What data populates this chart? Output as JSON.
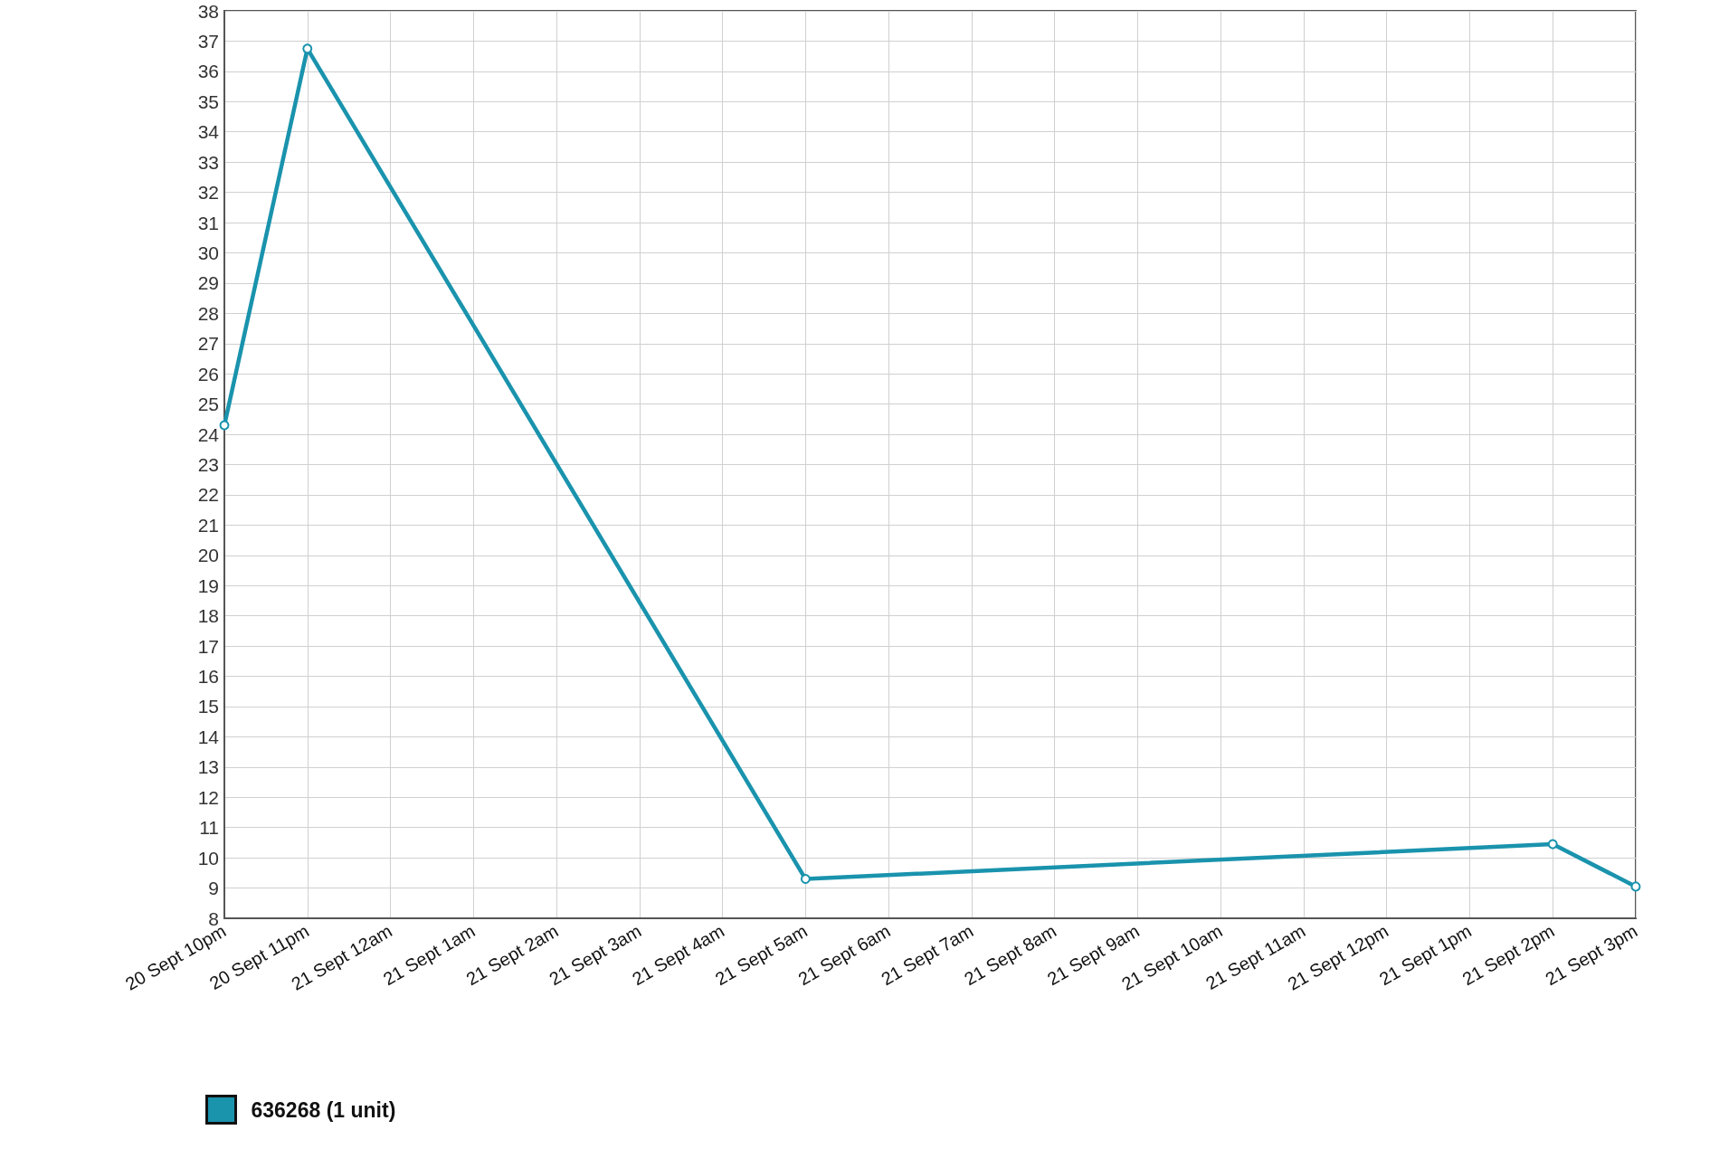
{
  "chart_data": {
    "type": "line",
    "x": [
      "--09-20T22:00",
      "--09-20T23:00",
      "--09-21T05:00",
      "--09-21T14:00",
      "--09-21T15:00"
    ],
    "xlim": [
      "--09-20T22:00",
      "--09-21T15:00"
    ],
    "xticks": [
      {
        "value": "--09-20T22:00",
        "label": "20 Sept 10pm"
      },
      {
        "value": "--09-20T23:00",
        "label": "20 Sept 11pm"
      },
      {
        "value": "--09-21T00:00",
        "label": "21 Sept 12am"
      },
      {
        "value": "--09-21T01:00",
        "label": "21 Sept 1am"
      },
      {
        "value": "--09-21T02:00",
        "label": "21 Sept 2am"
      },
      {
        "value": "--09-21T03:00",
        "label": "21 Sept 3am"
      },
      {
        "value": "--09-21T04:00",
        "label": "21 Sept 4am"
      },
      {
        "value": "--09-21T05:00",
        "label": "21 Sept 5am"
      },
      {
        "value": "--09-21T06:00",
        "label": "21 Sept 6am"
      },
      {
        "value": "--09-21T07:00",
        "label": "21 Sept 7am"
      },
      {
        "value": "--09-21T08:00",
        "label": "21 Sept 8am"
      },
      {
        "value": "--09-21T09:00",
        "label": "21 Sept 9am"
      },
      {
        "value": "--09-21T10:00",
        "label": "21 Sept 10am"
      },
      {
        "value": "--09-21T11:00",
        "label": "21 Sept 11am"
      },
      {
        "value": "--09-21T12:00",
        "label": "21 Sept 12pm"
      },
      {
        "value": "--09-21T13:00",
        "label": "21 Sept 1pm"
      },
      {
        "value": "--09-21T14:00",
        "label": "21 Sept 2pm"
      },
      {
        "value": "--09-21T15:00",
        "label": "21 Sept 3pm"
      }
    ],
    "ylim": [
      8,
      38
    ],
    "yticks": [
      8,
      9,
      10,
      11,
      12,
      13,
      14,
      15,
      16,
      17,
      18,
      19,
      20,
      21,
      22,
      23,
      24,
      25,
      26,
      27,
      28,
      29,
      30,
      31,
      32,
      33,
      34,
      35,
      36,
      37,
      38
    ],
    "series": [
      {
        "name": "636268 (1 unit)",
        "color": "#1a93ad",
        "values": [
          24.3,
          36.75,
          9.3,
          10.45,
          9.05
        ]
      }
    ],
    "grid": true,
    "legend": "bottom left",
    "marker": "circle",
    "line_style": "solid"
  }
}
